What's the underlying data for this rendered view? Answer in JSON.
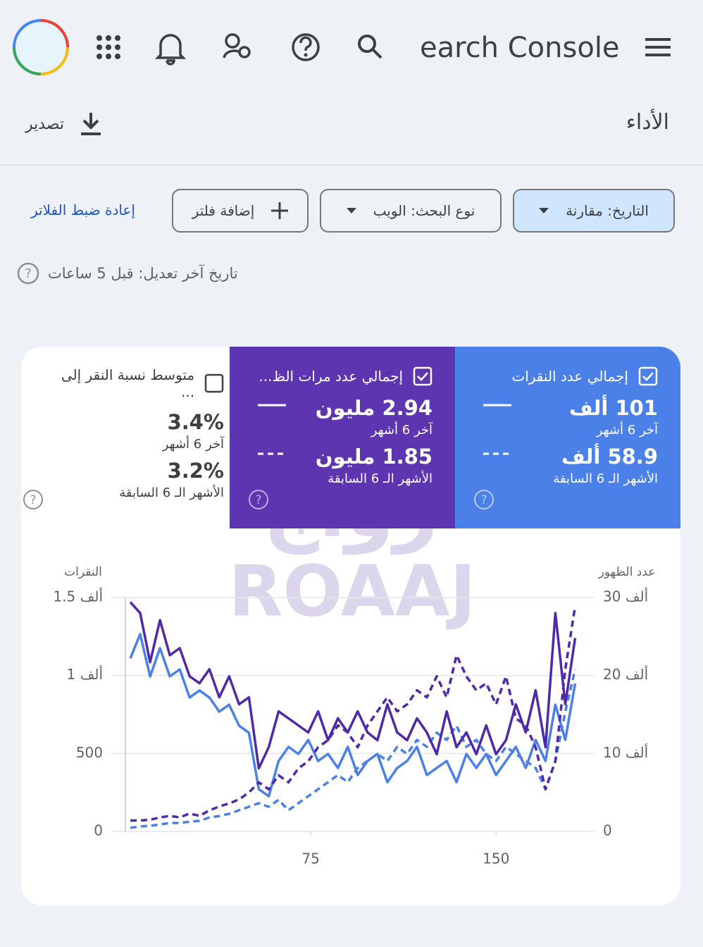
{
  "header": {
    "app_title": "earch Console"
  },
  "page": {
    "title": "الأداء",
    "export": "تصدير"
  },
  "filters": {
    "date": "التاريخ: مقارنة",
    "search_type": "نوع البحث: الويب",
    "add_filter": "إضافة فلتر",
    "reset": "إعادة ضبط الفلاتر"
  },
  "last_updated": "تاريخ آخر تعديل: قبل 5 ساعات",
  "metrics": [
    {
      "title": "إجمالي عدد النقرات",
      "current": "101 ألف",
      "current_label": "آخر 6 أشهر",
      "previous": "58.9 ألف",
      "previous_label": "الأشهر الـ 6 السابقة"
    },
    {
      "title": "إجمالي عدد مرات الظ...",
      "current": "2.94 مليون",
      "current_label": "آخر 6 أشهر",
      "previous": "1.85 مليون",
      "previous_label": "الأشهر الـ 6 السابقة"
    },
    {
      "title": "متوسط نسبة النقر إلى ...",
      "current": "3.4%",
      "current_label": "آخر 6 أشهر",
      "previous": "3.2%",
      "previous_label": "الأشهر الـ 6 السابقة"
    }
  ],
  "watermark": {
    "arabic": "رواج",
    "latin": "ROAAJ"
  },
  "chart_data": {
    "type": "line",
    "y_label": "النقرات",
    "y2_label": "عدد الظهور",
    "x": [
      2,
      6,
      10,
      14,
      18,
      22,
      26,
      30,
      34,
      38,
      42,
      46,
      50,
      54,
      58,
      62,
      66,
      70,
      74,
      78,
      82,
      86,
      90,
      94,
      98,
      102,
      106,
      110,
      114,
      118,
      122,
      126,
      130,
      134,
      138,
      142,
      146,
      150,
      154,
      158,
      162,
      166,
      170,
      174,
      178,
      182
    ],
    "xlim": [
      0,
      183
    ],
    "xticks": [
      75,
      150
    ],
    "ylim": [
      0,
      1500
    ],
    "yticks": [
      0,
      500,
      {
        "value": 1000,
        "label": "1 ألف"
      },
      {
        "value": 1500,
        "label": "1.5 ألف"
      }
    ],
    "y2lim": [
      0,
      30000
    ],
    "y2ticks": [
      0,
      {
        "value": 10000,
        "label": "10 ألف"
      },
      {
        "value": 20000,
        "label": "20 ألف"
      },
      {
        "value": 30000,
        "label": "30 ألف"
      }
    ],
    "grid": true,
    "series": [
      {
        "color": "#4a80e8",
        "dashed": false,
        "axis": "y",
        "values": [
          1110,
          1265,
          994,
          1175,
          994,
          1039,
          859,
          904,
          859,
          768,
          813,
          678,
          633,
          271,
          226,
          452,
          542,
          497,
          587,
          452,
          497,
          407,
          542,
          362,
          452,
          497,
          316,
          407,
          452,
          542,
          362,
          407,
          452,
          316,
          497,
          407,
          497,
          362,
          452,
          542,
          407,
          587,
          452,
          813,
          587,
          949
        ]
      },
      {
        "color": "#4a80e8",
        "dashed": true,
        "axis": "y",
        "values": [
          23,
          32,
          36,
          45,
          54,
          54,
          63,
          68,
          90,
          99,
          113,
          136,
          158,
          181,
          158,
          203,
          136,
          181,
          226,
          271,
          316,
          362,
          316,
          407,
          452,
          497,
          452,
          542,
          497,
          587,
          542,
          633,
          587,
          678,
          542,
          587,
          497,
          452,
          542,
          497,
          452,
          407,
          271,
          452,
          768,
          1039
        ]
      },
      {
        "color": "#4f2aa8",
        "dashed": false,
        "axis": "y2",
        "values": [
          29400,
          28000,
          21700,
          27100,
          22600,
          23500,
          19900,
          19000,
          20800,
          17200,
          19900,
          16300,
          17200,
          8100,
          10800,
          15400,
          14500,
          13600,
          12700,
          15400,
          11700,
          14500,
          12700,
          15400,
          12700,
          11700,
          16300,
          12700,
          11700,
          14500,
          12700,
          9900,
          15400,
          10800,
          12700,
          9900,
          13600,
          9900,
          11700,
          16300,
          12700,
          18100,
          10800,
          28000,
          16300,
          24800
        ]
      },
      {
        "color": "#4f2aa8",
        "dashed": true,
        "axis": "y2",
        "values": [
          1400,
          1400,
          1500,
          1800,
          2000,
          1800,
          2300,
          2000,
          2700,
          3200,
          3600,
          4100,
          5000,
          6300,
          5400,
          7200,
          6300,
          8100,
          9000,
          10800,
          11700,
          13600,
          12700,
          10800,
          13600,
          15400,
          17200,
          15400,
          16300,
          18100,
          17200,
          19900,
          17200,
          22600,
          19900,
          18100,
          19000,
          16300,
          19900,
          14500,
          13600,
          10800,
          5400,
          9000,
          20800,
          28900
        ]
      }
    ]
  }
}
